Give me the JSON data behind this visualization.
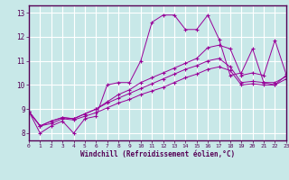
{
  "xlabel": "Windchill (Refroidissement éolien,°C)",
  "bg_color": "#c8e8e8",
  "grid_color": "#ffffff",
  "line_color": "#990099",
  "xlim": [
    0,
    23
  ],
  "ylim": [
    7.7,
    13.3
  ],
  "yticks": [
    8,
    9,
    10,
    11,
    12,
    13
  ],
  "xticks": [
    0,
    1,
    2,
    3,
    4,
    5,
    6,
    7,
    8,
    9,
    10,
    11,
    12,
    13,
    14,
    15,
    16,
    17,
    18,
    19,
    20,
    21,
    22,
    23
  ],
  "series": [
    [
      8.9,
      8.0,
      8.3,
      8.5,
      8.0,
      8.6,
      8.7,
      10.0,
      10.1,
      10.1,
      11.0,
      12.6,
      12.9,
      12.9,
      12.3,
      12.3,
      12.9,
      11.9,
      10.4,
      10.5,
      11.5,
      10.1,
      10.0,
      10.4
    ],
    [
      8.9,
      8.3,
      8.4,
      8.6,
      8.55,
      8.7,
      8.85,
      9.05,
      9.25,
      9.4,
      9.6,
      9.75,
      9.9,
      10.1,
      10.3,
      10.45,
      10.65,
      10.75,
      10.6,
      10.0,
      10.05,
      10.0,
      10.0,
      10.25
    ],
    [
      8.9,
      8.3,
      8.5,
      8.65,
      8.6,
      8.8,
      9.0,
      9.25,
      9.45,
      9.65,
      9.85,
      10.05,
      10.25,
      10.45,
      10.65,
      10.8,
      11.0,
      11.1,
      10.75,
      10.1,
      10.15,
      10.1,
      10.1,
      10.35
    ],
    [
      8.9,
      8.3,
      8.5,
      8.65,
      8.6,
      8.8,
      9.0,
      9.3,
      9.6,
      9.8,
      10.1,
      10.3,
      10.5,
      10.7,
      10.9,
      11.1,
      11.55,
      11.65,
      11.5,
      10.4,
      10.5,
      10.4,
      11.85,
      10.45
    ]
  ]
}
